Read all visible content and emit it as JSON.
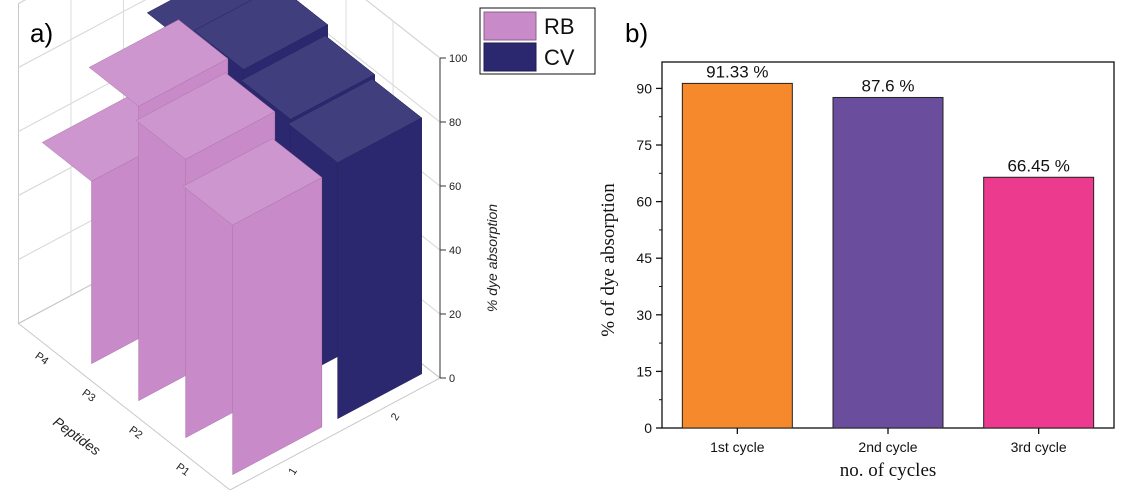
{
  "chart_data": [
    {
      "type": "bar",
      "panel_label": "a)",
      "projection": "3d",
      "categories": [
        "P1",
        "P2",
        "P3",
        "P4"
      ],
      "category_axis_title": "Peptides",
      "depth_ticks": [
        "1",
        "2"
      ],
      "series": [
        {
          "name": "RB",
          "color": "#c88ac8",
          "values": [
            78,
            87,
            92,
            57
          ]
        },
        {
          "name": "CV",
          "color": "#2c2870",
          "values": [
            80,
            82,
            86,
            80
          ]
        }
      ],
      "zlabel": "% dye absorption",
      "zlim": [
        0,
        100
      ],
      "zticks": [
        0,
        20,
        40,
        60,
        80,
        100
      ],
      "grid": true,
      "legend": "top-right"
    },
    {
      "type": "bar",
      "panel_label": "b)",
      "categories": [
        "1st cycle",
        "2nd cycle",
        "3rd cycle"
      ],
      "values": [
        91.33,
        87.6,
        66.45
      ],
      "data_labels": [
        "91.33 %",
        "87.6 %",
        "66.45 %"
      ],
      "colors": [
        "#f5892c",
        "#6a4d9c",
        "#ec3a8e"
      ],
      "xlabel": "no. of cycles",
      "ylabel": "% of dye absorption",
      "ylim": [
        0,
        97
      ],
      "yticks": [
        0,
        15,
        30,
        45,
        60,
        75,
        90
      ],
      "grid": false
    }
  ]
}
